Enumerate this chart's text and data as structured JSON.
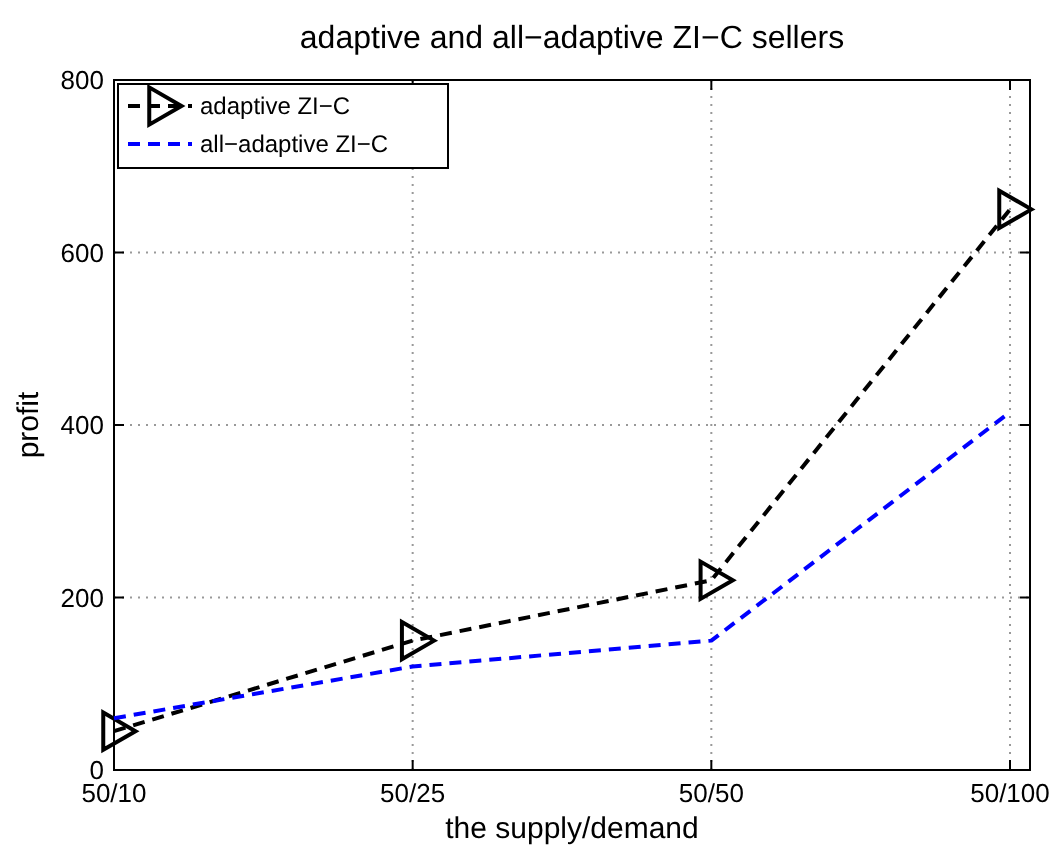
{
  "chart_data": {
    "type": "line",
    "title": "adaptive and all−adaptive ZI−C sellers",
    "xlabel": "the supply/demand",
    "ylabel": "profit",
    "categories": [
      "50/10",
      "50/25",
      "50/50",
      "50/100"
    ],
    "series": [
      {
        "name": "adaptive ZI−C",
        "color": "#000000",
        "values": [
          45,
          150,
          220,
          650
        ],
        "marker": "triangle",
        "line_style": "dashed"
      },
      {
        "name": "all−adaptive ZI−C",
        "color": "#0000ff",
        "values": [
          60,
          120,
          150,
          415
        ],
        "marker": "none",
        "line_style": "dashed"
      }
    ],
    "ylim": [
      0,
      800
    ],
    "yticks": [
      0,
      200,
      400,
      600,
      800
    ],
    "grid": true,
    "legend": "top left"
  }
}
